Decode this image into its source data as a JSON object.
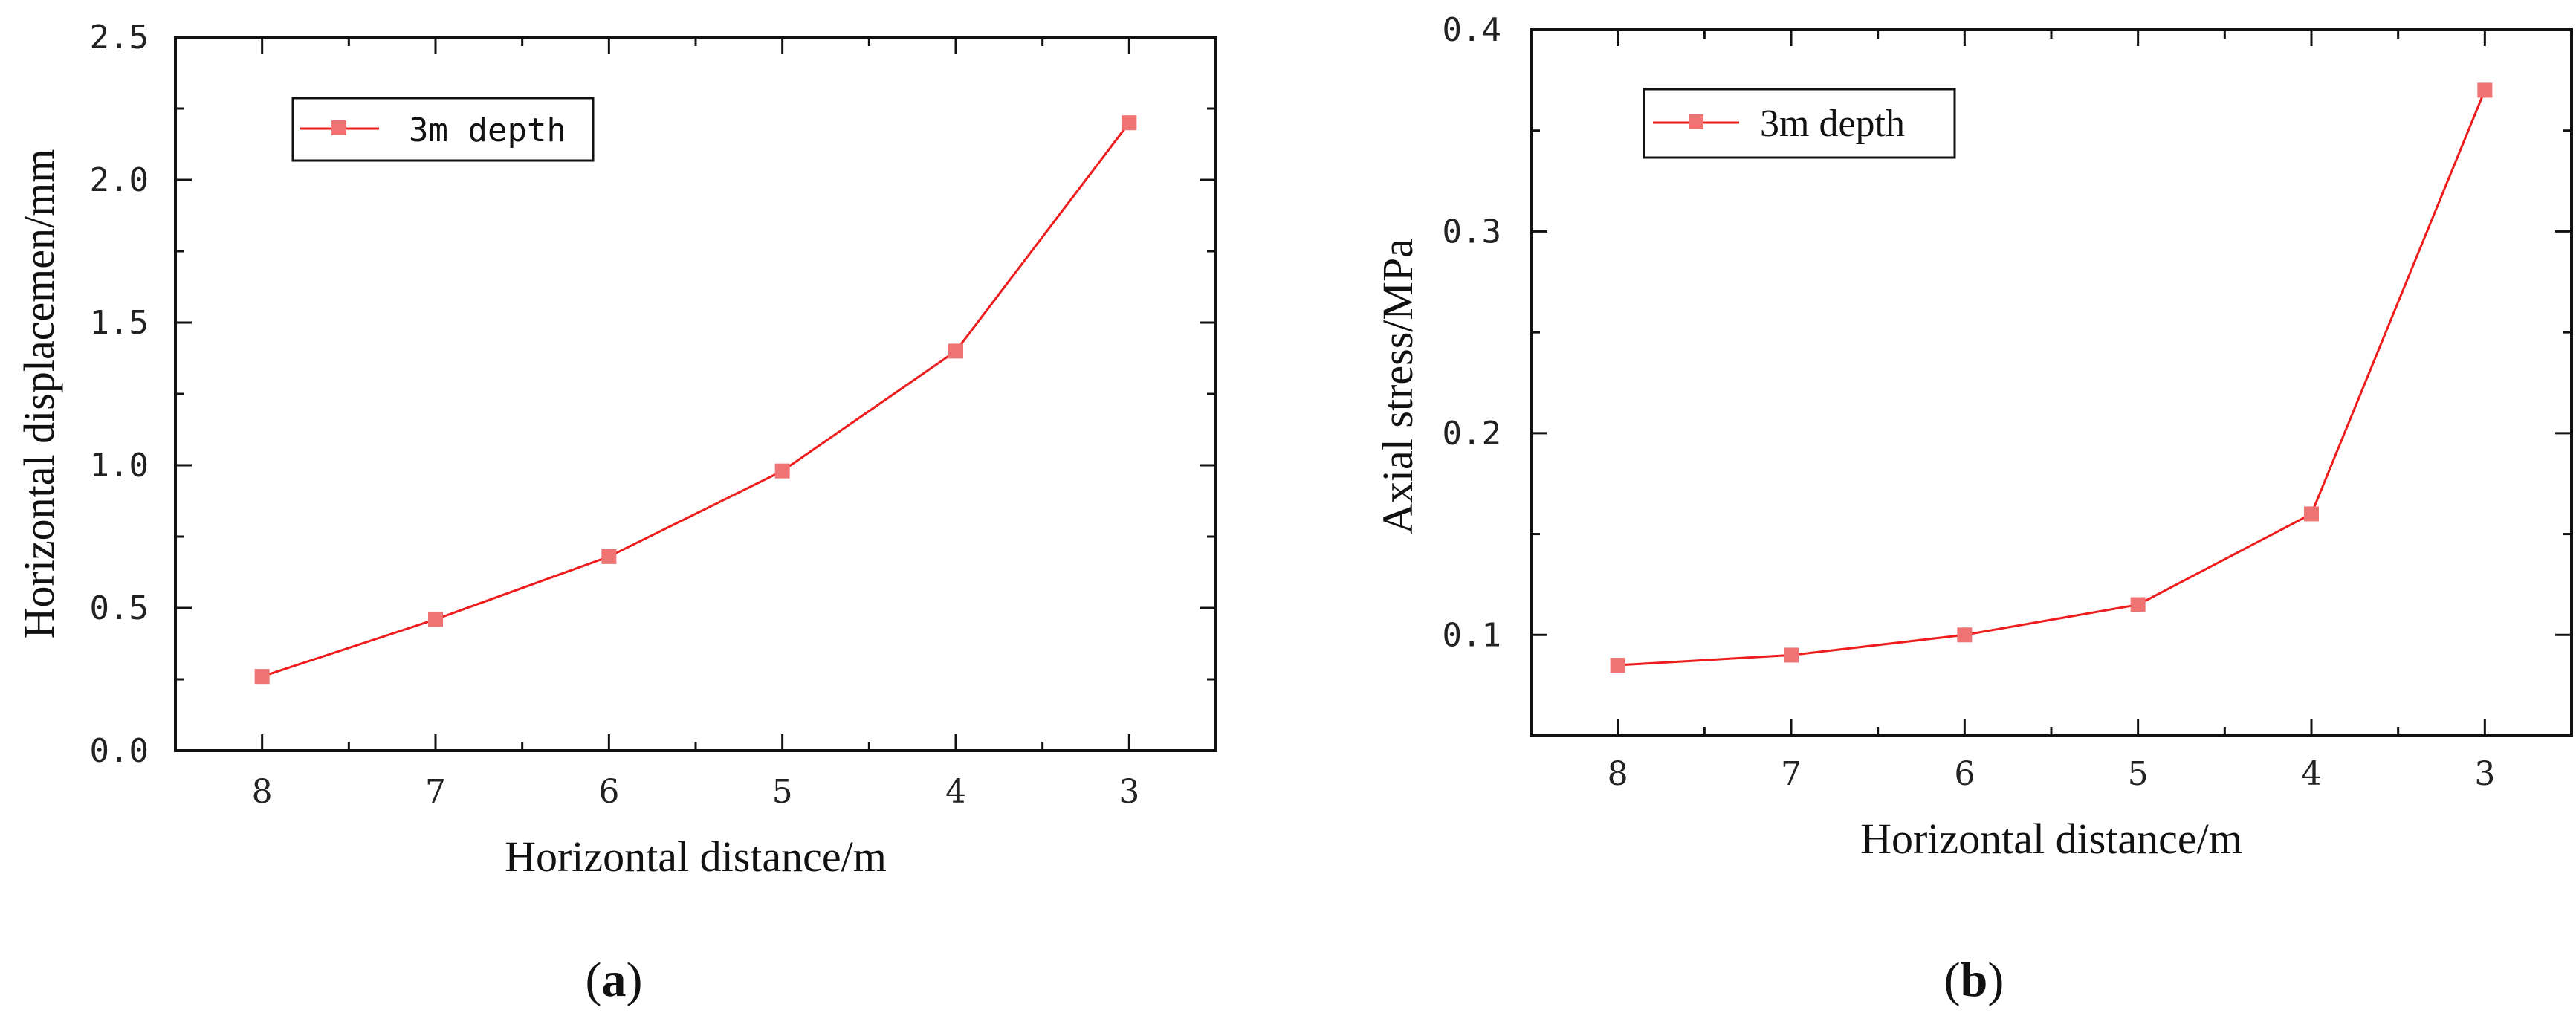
{
  "colors": {
    "series": "#ee1c1c",
    "marker": "#f07373",
    "axis": "#111111"
  },
  "chart_data": [
    {
      "type": "line",
      "panel": "a",
      "panel_label": {
        "open": "(",
        "letter": "a",
        "close": ")"
      },
      "categories": [
        "8",
        "7",
        "6",
        "5",
        "4",
        "3"
      ],
      "series": [
        {
          "name": "3m depth",
          "values": [
            0.26,
            0.46,
            0.68,
            0.98,
            1.4,
            2.2
          ]
        }
      ],
      "xlabel": "Horizontal distance/m",
      "ylabel": "Horizontal displacemen/mm",
      "ylim": [
        0.0,
        2.5
      ],
      "yticks": [
        "0.0",
        "0.5",
        "1.0",
        "1.5",
        "2.0",
        "2.5"
      ],
      "ytick_values": [
        0.0,
        0.5,
        1.0,
        1.5,
        2.0,
        2.5
      ],
      "legend": {
        "label": "3m depth",
        "position": "top-left"
      }
    },
    {
      "type": "line",
      "panel": "b",
      "panel_label": {
        "open": "(",
        "letter": "b",
        "close": ")"
      },
      "categories": [
        "8",
        "7",
        "6",
        "5",
        "4",
        "3"
      ],
      "series": [
        {
          "name": "3m depth",
          "values": [
            0.085,
            0.09,
            0.1,
            0.115,
            0.16,
            0.37
          ]
        }
      ],
      "xlabel": "Horizontal distance/m",
      "ylabel": "Axial stress/MPa",
      "ylim": [
        0.05,
        0.4
      ],
      "yticks": [
        "0.1",
        "0.2",
        "0.3",
        "0.4"
      ],
      "ytick_values": [
        0.1,
        0.2,
        0.3,
        0.4
      ],
      "legend": {
        "label": "3m depth",
        "position": "top-left"
      }
    }
  ]
}
